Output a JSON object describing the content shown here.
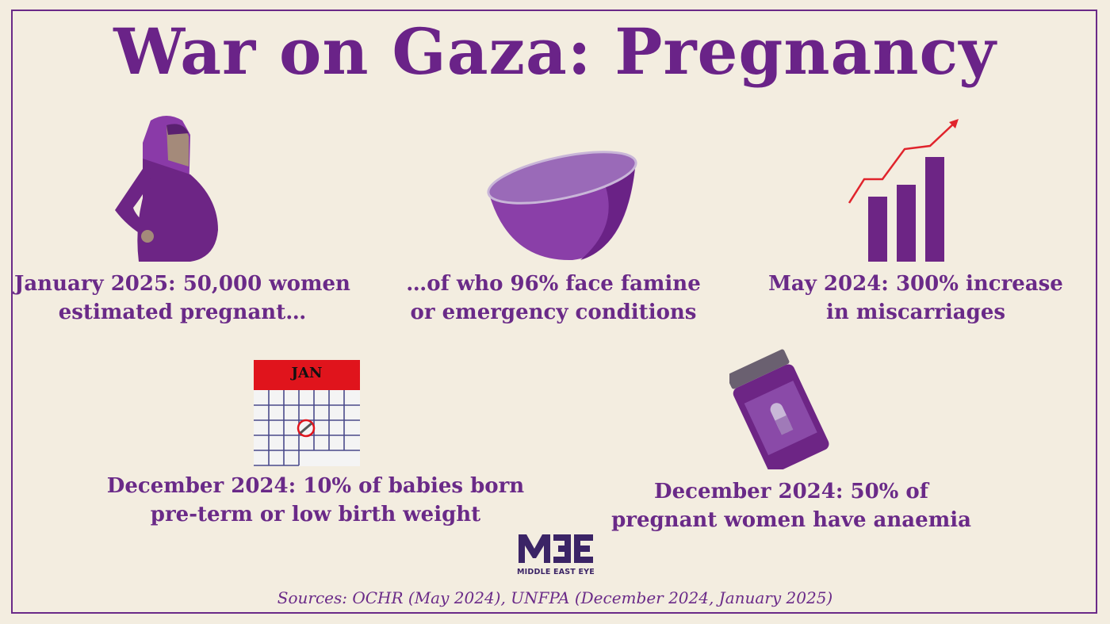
{
  "title": "War on Gaza: Pregnancy",
  "facts": [
    {
      "icon": "pregnant-woman-icon",
      "lines": [
        "January 2025: 50,000 women",
        "estimated pregnant…"
      ]
    },
    {
      "icon": "empty-bowl-icon",
      "lines": [
        "…of who 96% face famine",
        "or emergency conditions"
      ]
    },
    {
      "icon": "rising-bar-chart-icon",
      "lines": [
        "May 2024: 300% increase",
        "in miscarriages"
      ]
    },
    {
      "icon": "calendar-icon",
      "calendar_month": "JAN",
      "lines": [
        "December 2024: 10% of babies born",
        "pre-term or low birth weight"
      ]
    },
    {
      "icon": "pill-bottle-icon",
      "lines": [
        "December 2024: 50% of",
        "pregnant women have anaemia"
      ]
    }
  ],
  "logo": {
    "mark": "MEE",
    "text": "MIDDLE EAST EYE"
  },
  "sources": "Sources: OCHR (May 2024), UNFPA (December 2024, January 2025)",
  "colors": {
    "background": "#f3ede0",
    "text": "#6a2a88",
    "icon_purple": "#7a2e98",
    "accent_red": "#e0141c",
    "logo": "#3b2466"
  }
}
